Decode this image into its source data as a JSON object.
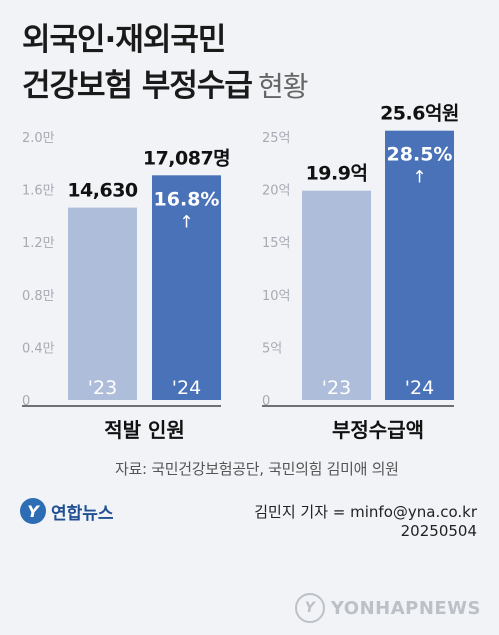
{
  "title": {
    "line1": "외국인·재외국민",
    "line2": "건강보험 부정수급",
    "line2_sub": "현황"
  },
  "chart_data": [
    {
      "type": "bar",
      "categories": [
        "'23",
        "'24"
      ],
      "values": [
        14630,
        17087
      ],
      "value_labels": [
        "14,630",
        "17,087명"
      ],
      "ylim": [
        0,
        20000
      ],
      "y_tick_labels": [
        "0",
        "0.4만",
        "0.8만",
        "1.2만",
        "1.6만",
        "2.0만"
      ],
      "growth_label": "16.8%",
      "xlabel": "적발 인원",
      "colors": [
        "#aebdd9",
        "#4a72b8"
      ]
    },
    {
      "type": "bar",
      "categories": [
        "'23",
        "'24"
      ],
      "values": [
        19.9,
        25.6
      ],
      "value_labels": [
        "19.9억",
        "25.6억원"
      ],
      "ylim": [
        0,
        25
      ],
      "y_tick_labels": [
        "0",
        "5억",
        "10억",
        "15억",
        "20억",
        "25억"
      ],
      "growth_label": "28.5%",
      "xlabel": "부정수급액",
      "colors": [
        "#aebdd9",
        "#4a72b8"
      ]
    }
  ],
  "growth_arrow": "↑",
  "source": "자료: 국민건강보험공단, 국민의힘 김미애 의원",
  "logo": {
    "mark": "Y",
    "name": "연합뉴스"
  },
  "reporter": "김민지 기자 = minfo@yna.co.kr",
  "date": "20250504",
  "watermark": "YONHAPNEWS"
}
